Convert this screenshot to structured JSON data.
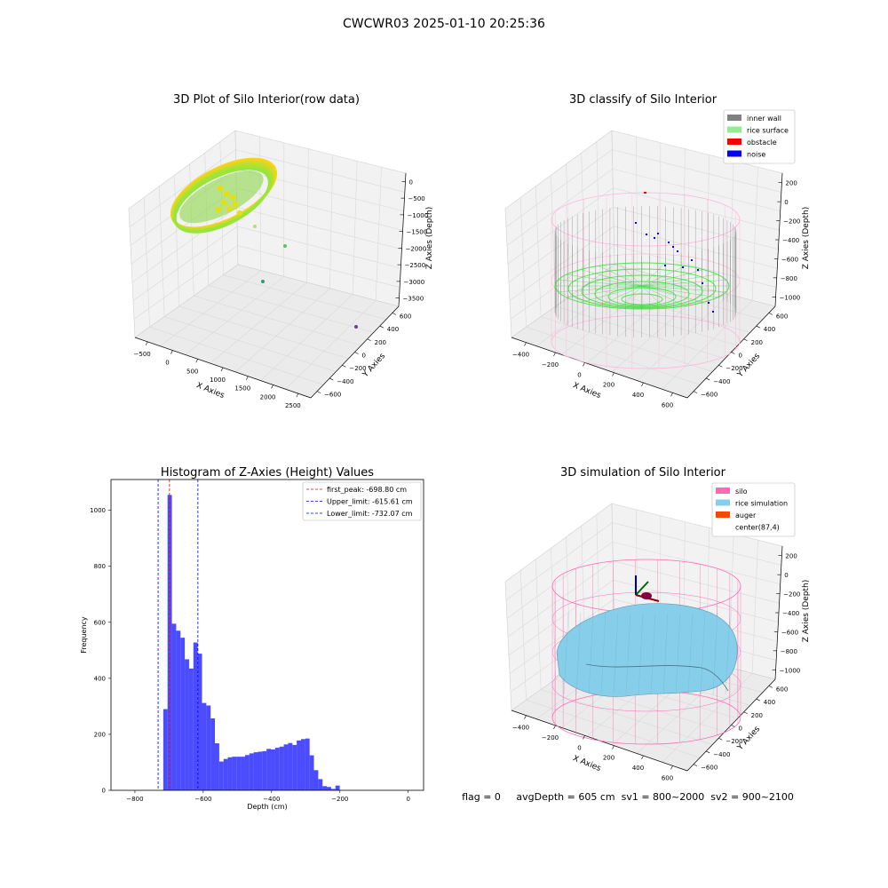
{
  "suptitle": "CWCWR03 2025-01-10 20:25:36",
  "status_line": "flag = 0     avgDepth = 605 cm  sv1 = 800~2000  sv2 = 900~2100",
  "colors": {
    "pane": "#f2f2f2",
    "grid": "#d9d9d9",
    "hist": "#0000ff",
    "wall": "#808080",
    "rice_surface": "#90ee90",
    "obstacle": "#ff0000",
    "noise": "#0000ff",
    "silo": "#ff69b4",
    "rice_sim": "#87ceeb",
    "auger": "#ff4500",
    "first_peak": "#ff0000",
    "limits": "#0000ff"
  },
  "chart_data": [
    {
      "type": "scatter",
      "title": "3D Plot of Silo Interior(row data)",
      "xlabel": "X Axies",
      "ylabel": "Y Axies",
      "zlabel": "Z Axies (Depth)",
      "x_ticks": [
        "−500",
        "0",
        "500",
        "1000",
        "1500",
        "2000",
        "2500"
      ],
      "y_ticks": [
        "−600",
        "−400",
        "−200",
        "0",
        "200",
        "400",
        "600"
      ],
      "z_ticks": [
        "0",
        "−500",
        "−1000",
        "−1500",
        "−2000",
        "−2500",
        "−3000",
        "−3500"
      ]
    },
    {
      "type": "scatter",
      "title": "3D classify of Silo Interior",
      "xlabel": "X Axies",
      "ylabel": "Y Axies",
      "zlabel": "Z Axies (Depth)",
      "x_ticks": [
        "−400",
        "−200",
        "0",
        "200",
        "400",
        "600"
      ],
      "y_ticks": [
        "−600",
        "−400",
        "−200",
        "0",
        "200",
        "400",
        "600"
      ],
      "z_ticks": [
        "200",
        "0",
        "−200",
        "−400",
        "−600",
        "−800",
        "−1000"
      ],
      "legend": [
        "inner wall",
        "rice surface",
        "obstacle",
        "noise"
      ],
      "legend_colors": [
        "#808080",
        "#90ee90",
        "#ff0000",
        "#0000ff"
      ]
    },
    {
      "type": "bar",
      "title": "Histogram of Z-Axies (Height) Values",
      "xlabel": "Depth (cm)",
      "ylabel": "Frequency",
      "xlim": [
        -870,
        45
      ],
      "ylim": [
        0,
        1110
      ],
      "x_ticks": [
        -800,
        -600,
        -400,
        -200,
        0
      ],
      "x_tick_labels": [
        "−800",
        "−600",
        "−400",
        "−200",
        "0"
      ],
      "y_ticks": [
        0,
        200,
        400,
        600,
        800,
        1000
      ],
      "bin_start": -717,
      "bin_width": 12.6,
      "values": [
        290,
        1055,
        595,
        570,
        545,
        468,
        435,
        528,
        488,
        312,
        303,
        257,
        168,
        103,
        112,
        118,
        120,
        120,
        120,
        126,
        132,
        136,
        138,
        140,
        148,
        146,
        152,
        156,
        164,
        169,
        162,
        178,
        183,
        185,
        125,
        72,
        40,
        15,
        12,
        5,
        17
      ],
      "lines": [
        {
          "label": "first_peak: -698.80 cm",
          "x": -698.8,
          "color": "#ff0000"
        },
        {
          "label": "Upper_limit: -615.61 cm",
          "x": -615.61,
          "color": "#0000ff"
        },
        {
          "label": "Lower_limit: -732.07 cm",
          "x": -732.07,
          "color": "#0000ff"
        }
      ]
    },
    {
      "type": "scatter",
      "title": "3D simulation of Silo Interior",
      "xlabel": "X Axies",
      "ylabel": "Y Axies",
      "zlabel": "Z Axies (Depth)",
      "x_ticks": [
        "−400",
        "−200",
        "0",
        "200",
        "400",
        "600"
      ],
      "y_ticks": [
        "−600",
        "−400",
        "−200",
        "0",
        "200",
        "400",
        "600"
      ],
      "z_ticks": [
        "200",
        "0",
        "−200",
        "−400",
        "−600",
        "−800",
        "−1000"
      ],
      "legend": [
        "silo",
        "rice simulation",
        "auger",
        "center(87,4)"
      ],
      "legend_colors": [
        "#ff69b4",
        "#87ceeb",
        "#ff4500",
        "#ffffff"
      ]
    }
  ]
}
